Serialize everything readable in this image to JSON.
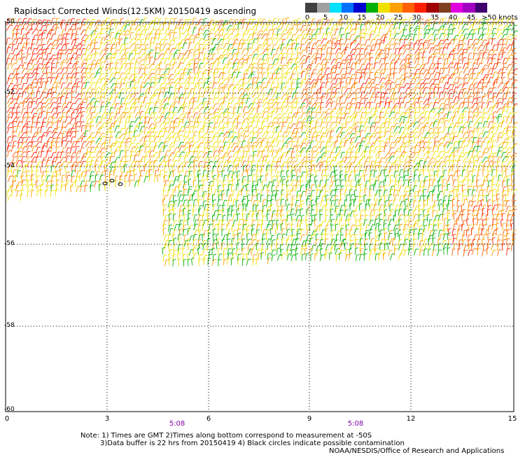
{
  "title": "Rapidsact Corrected Winds(12.5KM) 20150419 ascending",
  "colorbar": {
    "swatches": [
      "#404040",
      "#a0a0a0",
      "#00e0ff",
      "#0070ff",
      "#0000d0",
      "#00b000",
      "#f0e000",
      "#ffa000",
      "#ff6000",
      "#ff2000",
      "#a00000",
      "#804020",
      "#e000e0",
      "#a000c0",
      "#400070"
    ],
    "labels": [
      "0",
      "5",
      "10",
      "15",
      "20",
      "25",
      "30",
      "35",
      "40",
      "45",
      ">50 knots"
    ]
  },
  "y_ticks": [
    "-50",
    "-52",
    "-54",
    "-56",
    "-58",
    "-60"
  ],
  "x_ticks": [
    "0",
    "3",
    "6",
    "9",
    "12",
    "15"
  ],
  "pass_times": [
    "5:08",
    "5:08"
  ],
  "notes": [
    "Note: 1) Times are GMT 2)Times along bottom correspond to measurement at -50S",
    "3)Data buffer is 22 hrs from 20150419 4) Black circles indicate possible contamination"
  ],
  "credit": "NOAA/NESDIS/Office of Research and Applications",
  "map": {
    "lat_range": [
      -50,
      -60
    ],
    "lon_range": [
      0,
      15
    ],
    "speed_colors": [
      "#00b000",
      "#f0e000",
      "#ffa000",
      "#ff6000",
      "#ff2000",
      "#c000c0",
      "#000000"
    ]
  }
}
